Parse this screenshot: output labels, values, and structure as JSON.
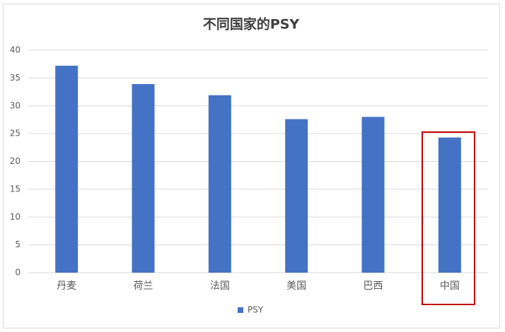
{
  "chart_data": {
    "type": "bar",
    "title": "不同国家的PSY",
    "categories": [
      "丹麦",
      "荷兰",
      "法国",
      "美国",
      "巴西",
      "中国"
    ],
    "series": [
      {
        "name": "PSY",
        "color": "#4472c4",
        "values": [
          37.2,
          33.9,
          31.9,
          27.6,
          28.0,
          24.3
        ]
      }
    ],
    "ylim": [
      0,
      40
    ],
    "yticks": [
      0,
      5,
      10,
      15,
      20,
      25,
      30,
      35,
      40
    ],
    "grid": true,
    "legend": "bottom"
  }
}
